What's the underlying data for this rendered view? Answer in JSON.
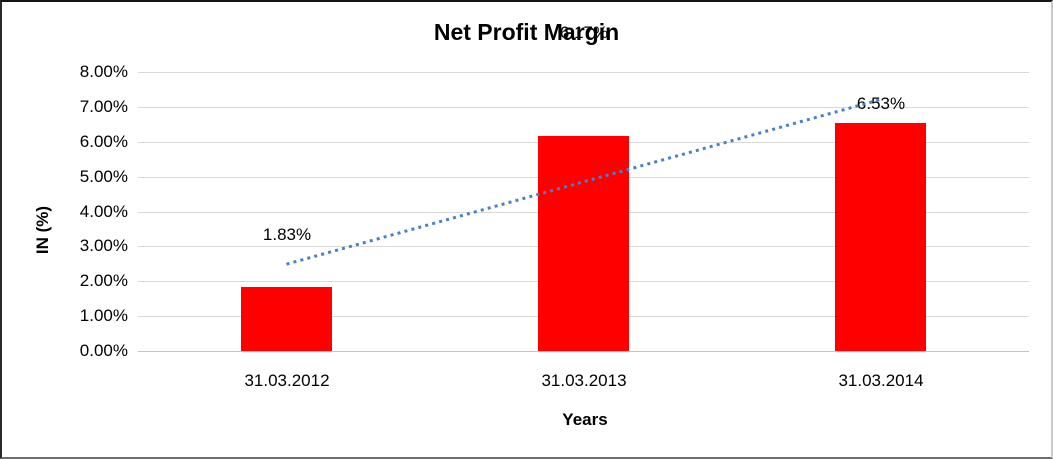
{
  "chart_data": {
    "type": "bar",
    "title": "Net Profit Margin",
    "xlabel": "Years",
    "ylabel": "IN (%)",
    "categories": [
      "31.03.2012",
      "31.03.2013",
      "31.03.2014"
    ],
    "values": [
      1.83,
      6.17,
      6.53
    ],
    "data_labels": [
      "1.83%",
      "6.17%",
      "6.53%"
    ],
    "ylim": [
      0,
      8
    ],
    "ytick_step": 1,
    "ytick_labels": [
      "0.00%",
      "1.00%",
      "2.00%",
      "3.00%",
      "4.00%",
      "5.00%",
      "6.00%",
      "7.00%",
      "8.00%"
    ],
    "grid": true,
    "legend": "none",
    "bar_color": "#ff0000",
    "text_color": "#000000",
    "gridline_color": "#d9d9d9",
    "trendline": {
      "type": "linear",
      "style": "dotted",
      "color": "#4a80c4",
      "start_value": 2.49,
      "end_value": 7.21
    },
    "note": "data label 6.17% overlaps chart title"
  }
}
